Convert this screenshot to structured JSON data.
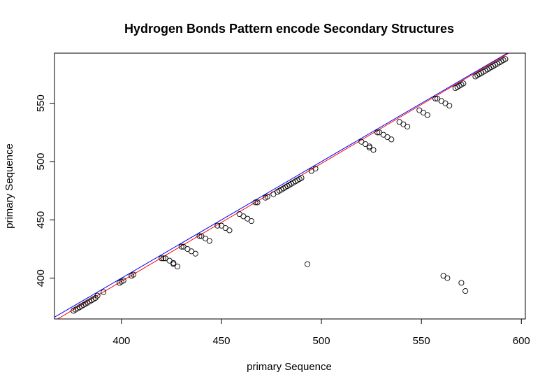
{
  "chart_data": {
    "type": "scatter",
    "title": "Hydrogen Bonds Pattern encode Secondary Structures",
    "xlabel": "primary Sequence",
    "ylabel": "primary Sequence",
    "xlim": [
      366.5,
      602
    ],
    "ylim": [
      365,
      593
    ],
    "xticks": [
      400,
      450,
      500,
      550,
      600
    ],
    "yticks": [
      400,
      450,
      500,
      550
    ],
    "xtick_labels": [
      "400",
      "450",
      "500",
      "550",
      "600"
    ],
    "ytick_labels": [
      "400",
      "450",
      "500",
      "550"
    ],
    "grid": false,
    "legend": "none",
    "marker": "open-circle",
    "colors": {
      "points": "#000000",
      "line_identity": "#0000ff",
      "line_fit": "#ff0000",
      "axes": "#000000"
    },
    "reference_lines": [
      {
        "color": "#0000ff",
        "intercept": 0,
        "slope": 1
      },
      {
        "color": "#ff0000",
        "intercept": -7,
        "slope": 1.0107
      }
    ],
    "points": [
      [
        376,
        372
      ],
      [
        377,
        373
      ],
      [
        378,
        374
      ],
      [
        379,
        375
      ],
      [
        380,
        376
      ],
      [
        381,
        377
      ],
      [
        382,
        378
      ],
      [
        383,
        379
      ],
      [
        384,
        380
      ],
      [
        385,
        381
      ],
      [
        386,
        382
      ],
      [
        387,
        383
      ],
      [
        388,
        385
      ],
      [
        391,
        388
      ],
      [
        399,
        396
      ],
      [
        400,
        397
      ],
      [
        401,
        398
      ],
      [
        405,
        402
      ],
      [
        406,
        403
      ],
      [
        420,
        417
      ],
      [
        421,
        417
      ],
      [
        422,
        417
      ],
      [
        424,
        415
      ],
      [
        426,
        413
      ],
      [
        426,
        412
      ],
      [
        428,
        410
      ],
      [
        430,
        427
      ],
      [
        431,
        427
      ],
      [
        433,
        425
      ],
      [
        435,
        423
      ],
      [
        437,
        421
      ],
      [
        439,
        436
      ],
      [
        440,
        436
      ],
      [
        442,
        434
      ],
      [
        444,
        432
      ],
      [
        448,
        445
      ],
      [
        450,
        445
      ],
      [
        452,
        443
      ],
      [
        454,
        441
      ],
      [
        459,
        455
      ],
      [
        461,
        453
      ],
      [
        463,
        451
      ],
      [
        465,
        449
      ],
      [
        467,
        465
      ],
      [
        468,
        465
      ],
      [
        472,
        469
      ],
      [
        473,
        470
      ],
      [
        476,
        472
      ],
      [
        478,
        474
      ],
      [
        479,
        475
      ],
      [
        480,
        476
      ],
      [
        481,
        477
      ],
      [
        482,
        478
      ],
      [
        483,
        479
      ],
      [
        484,
        480
      ],
      [
        485,
        481
      ],
      [
        486,
        482
      ],
      [
        487,
        483
      ],
      [
        488,
        484
      ],
      [
        489,
        485
      ],
      [
        490,
        486
      ],
      [
        493,
        412
      ],
      [
        495,
        492
      ],
      [
        497,
        494
      ],
      [
        520,
        517
      ],
      [
        522,
        515
      ],
      [
        524,
        513
      ],
      [
        524,
        512
      ],
      [
        526,
        510
      ],
      [
        528,
        525
      ],
      [
        529,
        525
      ],
      [
        531,
        523
      ],
      [
        533,
        521
      ],
      [
        535,
        519
      ],
      [
        539,
        534
      ],
      [
        541,
        532
      ],
      [
        543,
        530
      ],
      [
        549,
        544
      ],
      [
        551,
        542
      ],
      [
        553,
        540
      ],
      [
        557,
        554
      ],
      [
        558,
        554
      ],
      [
        560,
        552
      ],
      [
        562,
        550
      ],
      [
        564,
        548
      ],
      [
        561,
        402
      ],
      [
        563,
        400
      ],
      [
        567,
        563
      ],
      [
        568,
        564
      ],
      [
        569,
        565
      ],
      [
        570,
        566
      ],
      [
        571,
        567
      ],
      [
        570,
        396
      ],
      [
        572,
        389
      ],
      [
        577,
        573
      ],
      [
        578,
        574
      ],
      [
        579,
        575
      ],
      [
        580,
        576
      ],
      [
        581,
        577
      ],
      [
        582,
        578
      ],
      [
        583,
        579
      ],
      [
        584,
        580
      ],
      [
        585,
        581
      ],
      [
        586,
        582
      ],
      [
        587,
        583
      ],
      [
        588,
        584
      ],
      [
        589,
        585
      ],
      [
        590,
        586
      ],
      [
        591,
        587
      ],
      [
        592,
        588
      ]
    ]
  }
}
